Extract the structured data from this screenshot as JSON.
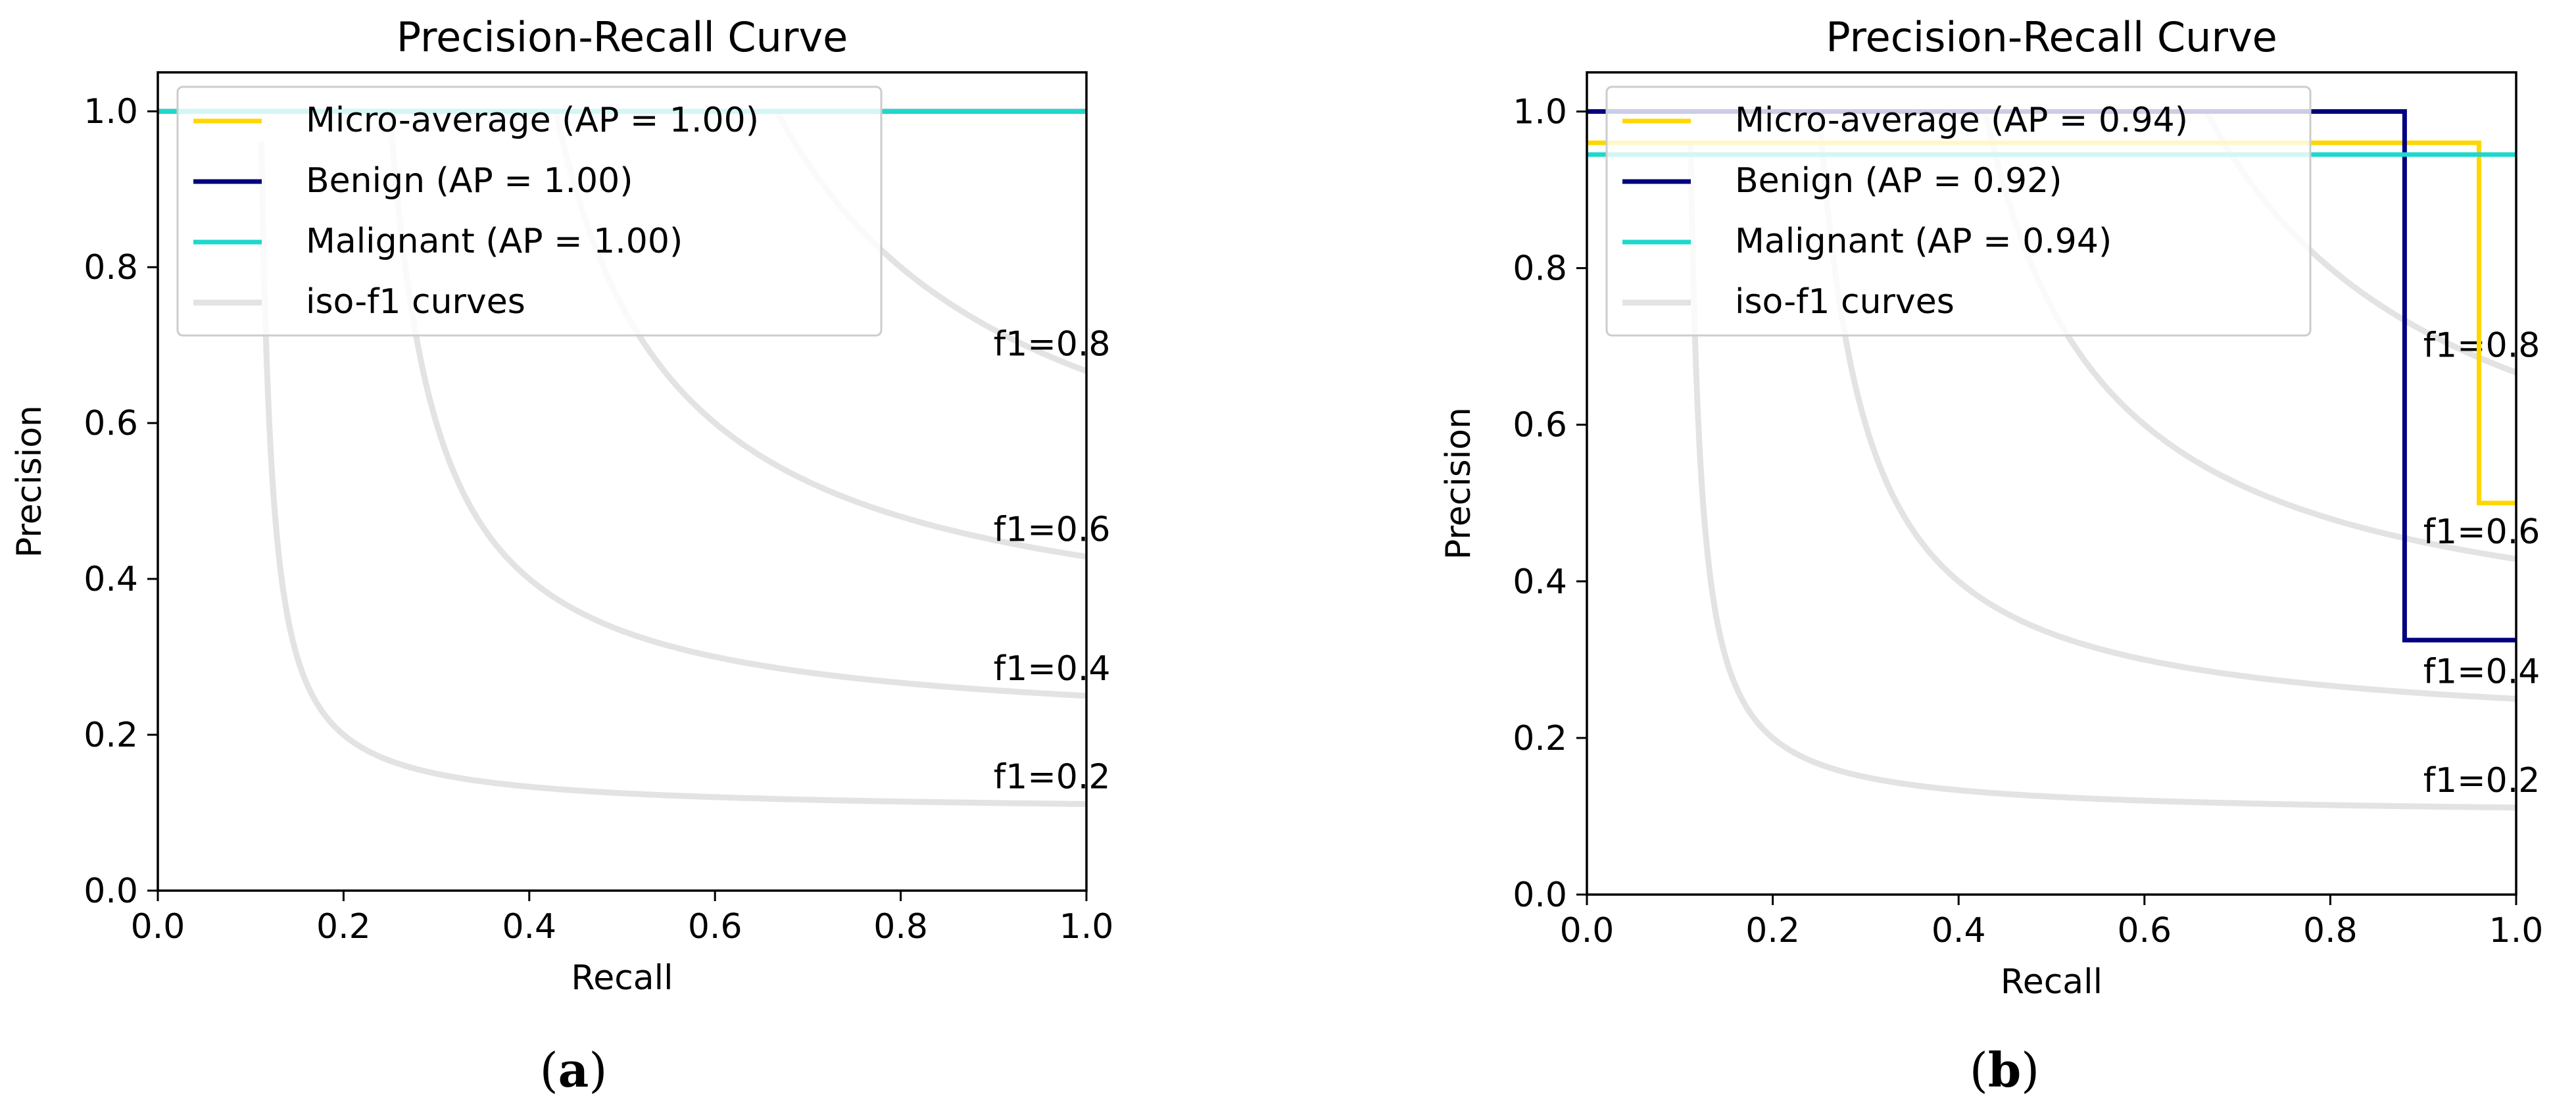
{
  "colors": {
    "micro": "#FFD700",
    "benign": "#000080",
    "malignant": "#1FD8CC",
    "iso": "#E3E3E3",
    "frame": "#000000",
    "background": "#FFFFFF"
  },
  "chart_data": [
    {
      "type": "line",
      "title": "Precision-Recall Curve",
      "xlabel": "Recall",
      "ylabel": "Precision",
      "xlim": [
        0.0,
        1.0
      ],
      "ylim": [
        0.0,
        1.05
      ],
      "xticks": [
        "0.0",
        "0.2",
        "0.4",
        "0.6",
        "0.8",
        "1.0"
      ],
      "yticks": [
        "0.0",
        "0.2",
        "0.4",
        "0.6",
        "0.8",
        "1.0"
      ],
      "legend_position": "top-left",
      "legend": [
        {
          "label": "Micro-average  (AP = 1.00)",
          "color_key": "micro"
        },
        {
          "label": "Benign (AP = 1.00)",
          "color_key": "benign"
        },
        {
          "label": "Malignant (AP = 1.00)",
          "color_key": "malignant"
        },
        {
          "label": "iso-f1 curves",
          "color_key": "iso"
        }
      ],
      "iso_f1": [
        {
          "f": 0.2,
          "label": "f1=0.2"
        },
        {
          "f": 0.4,
          "label": "f1=0.4"
        },
        {
          "f": 0.6,
          "label": "f1=0.6"
        },
        {
          "f": 0.8,
          "label": "f1=0.8"
        }
      ],
      "series": [
        {
          "name": "Micro-average",
          "color_key": "micro",
          "x": [
            0.0,
            1.0
          ],
          "y": [
            1.0,
            1.0
          ]
        },
        {
          "name": "Benign",
          "color_key": "benign",
          "x": [
            0.0,
            1.0
          ],
          "y": [
            1.0,
            1.0
          ]
        },
        {
          "name": "Malignant",
          "color_key": "malignant",
          "x": [
            0.0,
            1.0
          ],
          "y": [
            1.0,
            1.0
          ]
        }
      ],
      "caption": {
        "open": "(",
        "letter": "a",
        "close": ")"
      }
    },
    {
      "type": "line",
      "title": "Precision-Recall Curve",
      "xlabel": "Recall",
      "ylabel": "Precision",
      "xlim": [
        0.0,
        1.0
      ],
      "ylim": [
        0.0,
        1.05
      ],
      "xticks": [
        "0.0",
        "0.2",
        "0.4",
        "0.6",
        "0.8",
        "1.0"
      ],
      "yticks": [
        "0.0",
        "0.2",
        "0.4",
        "0.6",
        "0.8",
        "1.0"
      ],
      "legend_position": "top-left",
      "legend": [
        {
          "label": "Micro-average  (AP = 0.94)",
          "color_key": "micro"
        },
        {
          "label": "Benign (AP = 0.92)",
          "color_key": "benign"
        },
        {
          "label": "Malignant (AP = 0.94)",
          "color_key": "malignant"
        },
        {
          "label": "iso-f1 curves",
          "color_key": "iso"
        }
      ],
      "iso_f1": [
        {
          "f": 0.2,
          "label": "f1=0.2"
        },
        {
          "f": 0.4,
          "label": "f1=0.4"
        },
        {
          "f": 0.6,
          "label": "f1=0.6"
        },
        {
          "f": 0.8,
          "label": "f1=0.8"
        }
      ],
      "series": [
        {
          "name": "Micro-average",
          "color_key": "micro",
          "x": [
            0.0,
            0.96,
            0.96,
            1.0
          ],
          "y": [
            0.96,
            0.96,
            0.5,
            0.5
          ]
        },
        {
          "name": "Benign",
          "color_key": "benign",
          "x": [
            0.0,
            0.88,
            0.88,
            1.0
          ],
          "y": [
            1.0,
            1.0,
            0.325,
            0.325
          ]
        },
        {
          "name": "Malignant",
          "color_key": "malignant",
          "x": [
            0.0,
            1.0
          ],
          "y": [
            0.945,
            0.945
          ]
        }
      ],
      "caption": {
        "open": "(",
        "letter": "b",
        "close": ")"
      }
    }
  ]
}
